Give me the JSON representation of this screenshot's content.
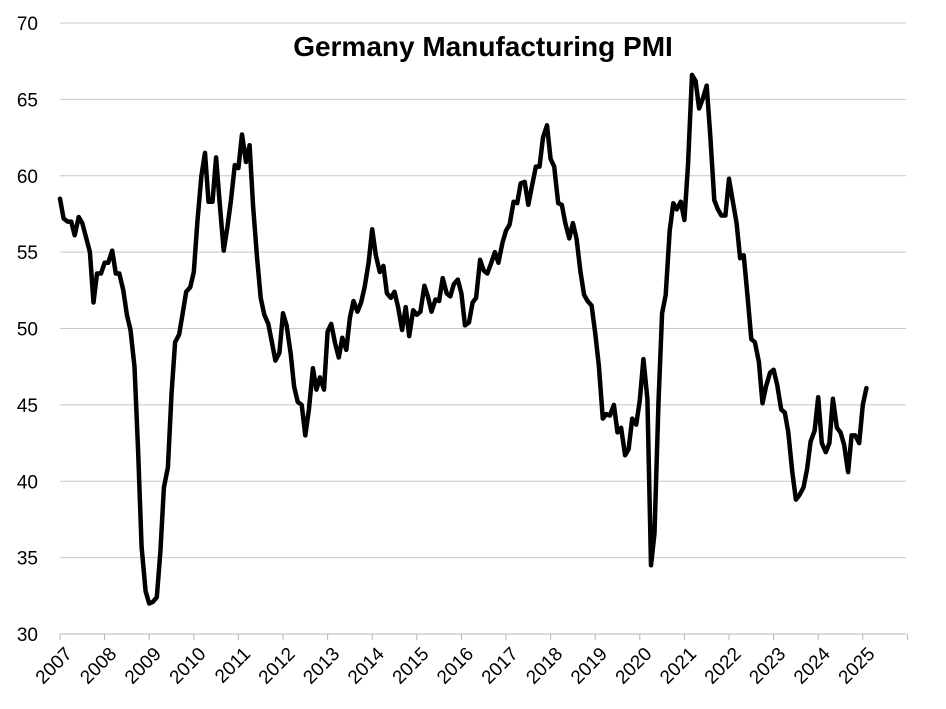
{
  "chart_data": {
    "type": "line",
    "title": "Germany Manufacturing PMI",
    "xlabel": "",
    "ylabel": "",
    "ylim": [
      30,
      70
    ],
    "yticks": [
      30,
      35,
      40,
      45,
      50,
      55,
      60,
      65,
      70
    ],
    "xticks": [
      "2007",
      "2008",
      "2009",
      "2010",
      "2011",
      "2012",
      "2013",
      "2014",
      "2015",
      "2016",
      "2017",
      "2018",
      "2019",
      "2020",
      "2021",
      "2022",
      "2023",
      "2024",
      "2025"
    ],
    "grid": true,
    "legend": "none",
    "series": [
      {
        "name": "Germany Manufacturing PMI",
        "color": "#000000",
        "points": [
          [
            2007.0,
            58.5
          ],
          [
            2007.08,
            57.2
          ],
          [
            2007.17,
            57.0
          ],
          [
            2007.25,
            57.0
          ],
          [
            2007.33,
            56.1
          ],
          [
            2007.42,
            57.3
          ],
          [
            2007.5,
            56.9
          ],
          [
            2007.58,
            56.0
          ],
          [
            2007.67,
            55.0
          ],
          [
            2007.75,
            51.7
          ],
          [
            2007.83,
            53.6
          ],
          [
            2007.92,
            53.6
          ],
          [
            2008.0,
            54.3
          ],
          [
            2008.08,
            54.3
          ],
          [
            2008.17,
            55.1
          ],
          [
            2008.25,
            53.6
          ],
          [
            2008.33,
            53.6
          ],
          [
            2008.42,
            52.5
          ],
          [
            2008.5,
            50.9
          ],
          [
            2008.58,
            49.9
          ],
          [
            2008.67,
            47.5
          ],
          [
            2008.75,
            42.0
          ],
          [
            2008.83,
            35.7
          ],
          [
            2008.92,
            32.8
          ],
          [
            2009.0,
            32.0
          ],
          [
            2009.08,
            32.1
          ],
          [
            2009.17,
            32.4
          ],
          [
            2009.25,
            35.4
          ],
          [
            2009.33,
            39.6
          ],
          [
            2009.42,
            40.9
          ],
          [
            2009.5,
            45.7
          ],
          [
            2009.58,
            49.1
          ],
          [
            2009.67,
            49.6
          ],
          [
            2009.75,
            51.0
          ],
          [
            2009.83,
            52.4
          ],
          [
            2009.92,
            52.7
          ],
          [
            2010.0,
            53.7
          ],
          [
            2010.08,
            57.0
          ],
          [
            2010.17,
            60.0
          ],
          [
            2010.25,
            61.5
          ],
          [
            2010.33,
            58.3
          ],
          [
            2010.42,
            58.3
          ],
          [
            2010.5,
            61.2
          ],
          [
            2010.58,
            58.2
          ],
          [
            2010.67,
            55.1
          ],
          [
            2010.75,
            56.6
          ],
          [
            2010.83,
            58.3
          ],
          [
            2010.92,
            60.7
          ],
          [
            2011.0,
            60.5
          ],
          [
            2011.08,
            62.7
          ],
          [
            2011.17,
            60.9
          ],
          [
            2011.25,
            62.0
          ],
          [
            2011.33,
            58.0
          ],
          [
            2011.42,
            54.6
          ],
          [
            2011.5,
            52.0
          ],
          [
            2011.58,
            50.9
          ],
          [
            2011.67,
            50.3
          ],
          [
            2011.75,
            49.1
          ],
          [
            2011.83,
            47.9
          ],
          [
            2011.92,
            48.4
          ],
          [
            2012.0,
            51.0
          ],
          [
            2012.08,
            50.2
          ],
          [
            2012.17,
            48.4
          ],
          [
            2012.25,
            46.2
          ],
          [
            2012.33,
            45.2
          ],
          [
            2012.42,
            45.0
          ],
          [
            2012.5,
            43.0
          ],
          [
            2012.58,
            44.7
          ],
          [
            2012.67,
            47.4
          ],
          [
            2012.75,
            46.0
          ],
          [
            2012.83,
            46.8
          ],
          [
            2012.92,
            46.0
          ],
          [
            2013.0,
            49.8
          ],
          [
            2013.08,
            50.3
          ],
          [
            2013.17,
            49.0
          ],
          [
            2013.25,
            48.1
          ],
          [
            2013.33,
            49.4
          ],
          [
            2013.42,
            48.6
          ],
          [
            2013.5,
            50.7
          ],
          [
            2013.58,
            51.8
          ],
          [
            2013.67,
            51.1
          ],
          [
            2013.75,
            51.7
          ],
          [
            2013.83,
            52.7
          ],
          [
            2013.92,
            54.3
          ],
          [
            2014.0,
            56.5
          ],
          [
            2014.08,
            54.8
          ],
          [
            2014.17,
            53.7
          ],
          [
            2014.25,
            54.1
          ],
          [
            2014.33,
            52.3
          ],
          [
            2014.42,
            52.0
          ],
          [
            2014.5,
            52.4
          ],
          [
            2014.58,
            51.4
          ],
          [
            2014.67,
            49.9
          ],
          [
            2014.75,
            51.4
          ],
          [
            2014.83,
            49.5
          ],
          [
            2014.92,
            51.2
          ],
          [
            2015.0,
            50.9
          ],
          [
            2015.08,
            51.1
          ],
          [
            2015.17,
            52.8
          ],
          [
            2015.25,
            52.1
          ],
          [
            2015.33,
            51.1
          ],
          [
            2015.42,
            51.9
          ],
          [
            2015.5,
            51.8
          ],
          [
            2015.58,
            53.3
          ],
          [
            2015.67,
            52.3
          ],
          [
            2015.75,
            52.1
          ],
          [
            2015.83,
            52.9
          ],
          [
            2015.92,
            53.2
          ],
          [
            2016.0,
            52.3
          ],
          [
            2016.08,
            50.2
          ],
          [
            2016.17,
            50.4
          ],
          [
            2016.25,
            51.7
          ],
          [
            2016.33,
            52.0
          ],
          [
            2016.42,
            54.5
          ],
          [
            2016.5,
            53.8
          ],
          [
            2016.58,
            53.6
          ],
          [
            2016.67,
            54.3
          ],
          [
            2016.75,
            55.0
          ],
          [
            2016.83,
            54.3
          ],
          [
            2016.92,
            55.6
          ],
          [
            2017.0,
            56.4
          ],
          [
            2017.08,
            56.8
          ],
          [
            2017.17,
            58.3
          ],
          [
            2017.25,
            58.2
          ],
          [
            2017.33,
            59.5
          ],
          [
            2017.42,
            59.6
          ],
          [
            2017.5,
            58.1
          ],
          [
            2017.58,
            59.3
          ],
          [
            2017.67,
            60.6
          ],
          [
            2017.75,
            60.6
          ],
          [
            2017.83,
            62.5
          ],
          [
            2017.92,
            63.3
          ],
          [
            2018.0,
            61.1
          ],
          [
            2018.08,
            60.6
          ],
          [
            2018.17,
            58.2
          ],
          [
            2018.25,
            58.1
          ],
          [
            2018.33,
            56.9
          ],
          [
            2018.42,
            55.9
          ],
          [
            2018.5,
            56.9
          ],
          [
            2018.58,
            55.9
          ],
          [
            2018.67,
            53.7
          ],
          [
            2018.75,
            52.2
          ],
          [
            2018.83,
            51.8
          ],
          [
            2018.92,
            51.5
          ],
          [
            2019.0,
            49.7
          ],
          [
            2019.08,
            47.6
          ],
          [
            2019.17,
            44.1
          ],
          [
            2019.25,
            44.4
          ],
          [
            2019.33,
            44.3
          ],
          [
            2019.42,
            45.0
          ],
          [
            2019.5,
            43.2
          ],
          [
            2019.58,
            43.5
          ],
          [
            2019.67,
            41.7
          ],
          [
            2019.75,
            42.1
          ],
          [
            2019.83,
            44.1
          ],
          [
            2019.92,
            43.7
          ],
          [
            2020.0,
            45.3
          ],
          [
            2020.08,
            48.0
          ],
          [
            2020.17,
            45.4
          ],
          [
            2020.25,
            34.5
          ],
          [
            2020.33,
            36.6
          ],
          [
            2020.42,
            45.2
          ],
          [
            2020.5,
            51.0
          ],
          [
            2020.58,
            52.2
          ],
          [
            2020.67,
            56.4
          ],
          [
            2020.75,
            58.2
          ],
          [
            2020.83,
            57.8
          ],
          [
            2020.92,
            58.3
          ],
          [
            2021.0,
            57.1
          ],
          [
            2021.08,
            60.7
          ],
          [
            2021.17,
            66.6
          ],
          [
            2021.25,
            66.2
          ],
          [
            2021.33,
            64.4
          ],
          [
            2021.42,
            65.1
          ],
          [
            2021.5,
            65.9
          ],
          [
            2021.58,
            62.6
          ],
          [
            2021.67,
            58.4
          ],
          [
            2021.75,
            57.8
          ],
          [
            2021.83,
            57.4
          ],
          [
            2021.92,
            57.4
          ],
          [
            2022.0,
            59.8
          ],
          [
            2022.08,
            58.4
          ],
          [
            2022.17,
            56.9
          ],
          [
            2022.25,
            54.6
          ],
          [
            2022.33,
            54.8
          ],
          [
            2022.42,
            52.0
          ],
          [
            2022.5,
            49.3
          ],
          [
            2022.58,
            49.1
          ],
          [
            2022.67,
            47.8
          ],
          [
            2022.75,
            45.1
          ],
          [
            2022.83,
            46.2
          ],
          [
            2022.92,
            47.1
          ],
          [
            2023.0,
            47.3
          ],
          [
            2023.08,
            46.3
          ],
          [
            2023.17,
            44.7
          ],
          [
            2023.25,
            44.5
          ],
          [
            2023.33,
            43.2
          ],
          [
            2023.42,
            40.6
          ],
          [
            2023.5,
            38.8
          ],
          [
            2023.58,
            39.1
          ],
          [
            2023.67,
            39.6
          ],
          [
            2023.75,
            40.8
          ],
          [
            2023.83,
            42.6
          ],
          [
            2023.92,
            43.3
          ],
          [
            2024.0,
            45.5
          ],
          [
            2024.08,
            42.5
          ],
          [
            2024.17,
            41.9
          ],
          [
            2024.25,
            42.5
          ],
          [
            2024.33,
            45.4
          ],
          [
            2024.42,
            43.5
          ],
          [
            2024.5,
            43.2
          ],
          [
            2024.58,
            42.4
          ],
          [
            2024.67,
            40.6
          ],
          [
            2024.75,
            43.0
          ],
          [
            2024.83,
            43.0
          ],
          [
            2024.92,
            42.5
          ],
          [
            2025.0,
            45.0
          ],
          [
            2025.08,
            46.1
          ]
        ]
      }
    ]
  }
}
